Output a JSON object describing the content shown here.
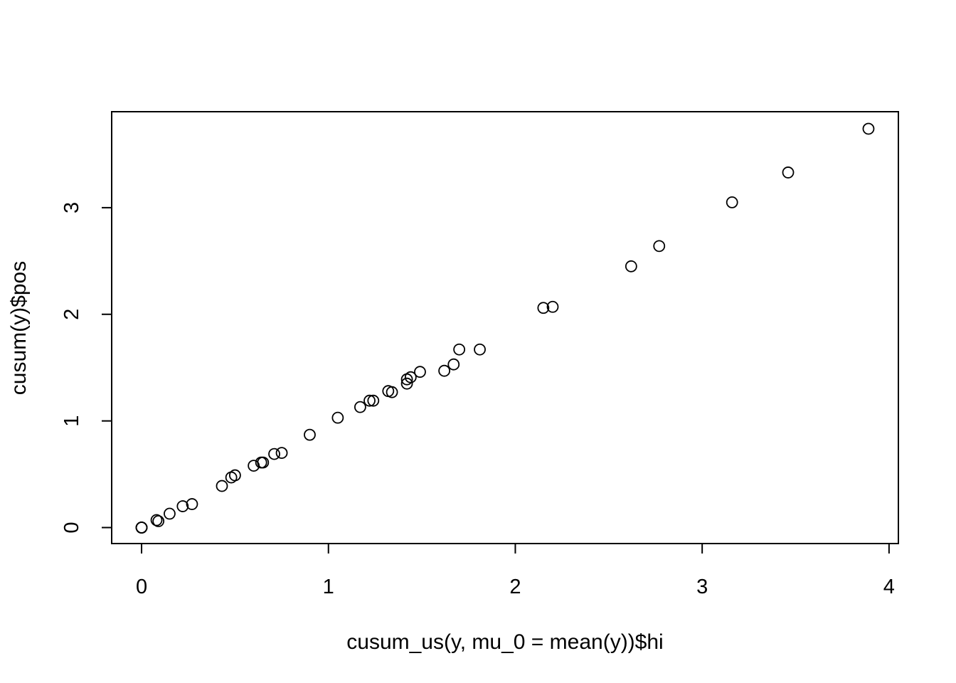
{
  "chart_data": {
    "type": "scatter",
    "title": "",
    "xlabel": "cusum_us(y, mu_0 = mean(y))$hi",
    "ylabel": "cusum(y)$pos",
    "xlim": [
      -0.16,
      4.05
    ],
    "ylim": [
      -0.15,
      3.9
    ],
    "xticks": [
      0,
      1,
      2,
      3,
      4
    ],
    "yticks": [
      0,
      1,
      2,
      3
    ],
    "xtick_labels": [
      "0",
      "1",
      "2",
      "3",
      "4"
    ],
    "ytick_labels": [
      "0",
      "1",
      "2",
      "3"
    ],
    "grid": false,
    "marker": "open-circle",
    "points": [
      [
        0,
        0
      ],
      [
        0,
        0
      ],
      [
        0,
        0
      ],
      [
        0,
        0
      ],
      [
        0.08,
        0.07
      ],
      [
        0.09,
        0.06
      ],
      [
        0.15,
        0.13
      ],
      [
        0.22,
        0.2
      ],
      [
        0.27,
        0.22
      ],
      [
        0.43,
        0.39
      ],
      [
        0.48,
        0.47
      ],
      [
        0.5,
        0.49
      ],
      [
        0.6,
        0.58
      ],
      [
        0.64,
        0.61
      ],
      [
        0.65,
        0.61
      ],
      [
        0.71,
        0.69
      ],
      [
        0.75,
        0.7
      ],
      [
        0.9,
        0.87
      ],
      [
        1.05,
        1.03
      ],
      [
        1.17,
        1.13
      ],
      [
        1.22,
        1.19
      ],
      [
        1.24,
        1.19
      ],
      [
        1.32,
        1.28
      ],
      [
        1.34,
        1.27
      ],
      [
        1.42,
        1.35
      ],
      [
        1.42,
        1.39
      ],
      [
        1.44,
        1.41
      ],
      [
        1.49,
        1.46
      ],
      [
        1.62,
        1.47
      ],
      [
        1.67,
        1.53
      ],
      [
        1.7,
        1.67
      ],
      [
        1.81,
        1.67
      ],
      [
        2.15,
        2.06
      ],
      [
        2.2,
        2.07
      ],
      [
        2.62,
        2.45
      ],
      [
        2.77,
        2.64
      ],
      [
        3.16,
        3.05
      ],
      [
        3.46,
        3.33
      ],
      [
        3.89,
        3.74
      ]
    ]
  }
}
